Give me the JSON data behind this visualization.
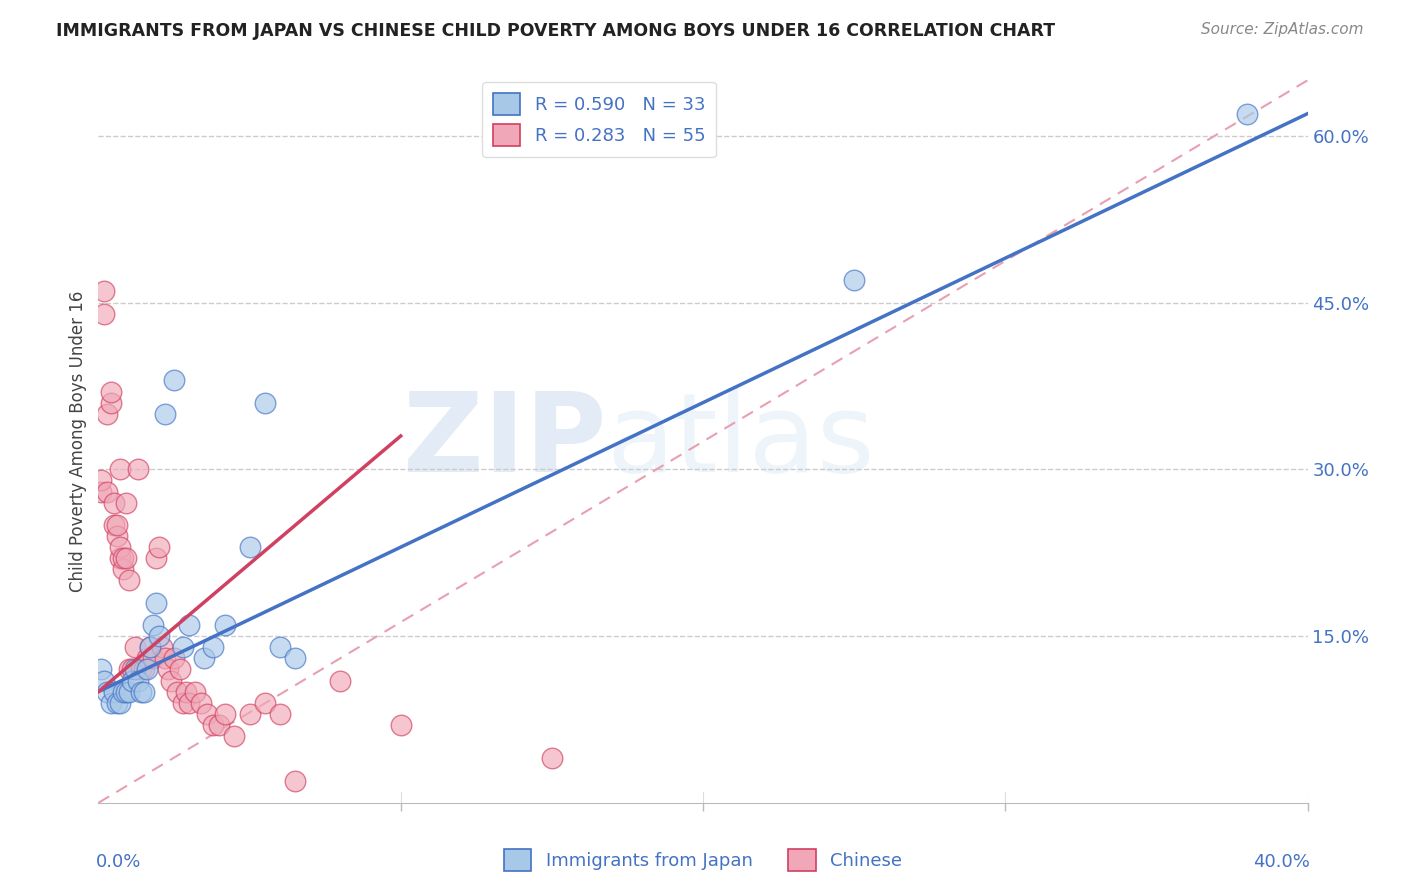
{
  "title": "IMMIGRANTS FROM JAPAN VS CHINESE CHILD POVERTY AMONG BOYS UNDER 16 CORRELATION CHART",
  "source": "Source: ZipAtlas.com",
  "ylabel": "Child Poverty Among Boys Under 16",
  "x_label_bottom_left": "0.0%",
  "x_label_bottom_right": "40.0%",
  "watermark_zip": "ZIP",
  "watermark_atlas": "atlas",
  "legend_label_japan": "Immigrants from Japan",
  "legend_label_chinese": "Chinese",
  "r_japan": 0.59,
  "n_japan": 33,
  "r_chinese": 0.283,
  "n_chinese": 55,
  "xlim": [
    0.0,
    0.4
  ],
  "ylim": [
    0.0,
    0.65
  ],
  "y_ticks": [
    0.15,
    0.3,
    0.45,
    0.6
  ],
  "y_tick_labels": [
    "15.0%",
    "30.0%",
    "45.0%",
    "60.0%"
  ],
  "x_ticks": [
    0.1,
    0.2,
    0.3,
    0.4
  ],
  "color_japan": "#a8c8e8",
  "color_chinese": "#f0a8b8",
  "line_color_japan": "#4472c4",
  "line_color_chinese": "#d04060",
  "title_color": "#222222",
  "japan_scatter_x": [
    0.001,
    0.002,
    0.003,
    0.004,
    0.005,
    0.006,
    0.007,
    0.008,
    0.009,
    0.01,
    0.011,
    0.012,
    0.013,
    0.014,
    0.015,
    0.016,
    0.017,
    0.018,
    0.019,
    0.02,
    0.022,
    0.025,
    0.028,
    0.03,
    0.035,
    0.038,
    0.042,
    0.05,
    0.055,
    0.06,
    0.065,
    0.25,
    0.38
  ],
  "japan_scatter_y": [
    0.12,
    0.11,
    0.1,
    0.09,
    0.1,
    0.09,
    0.09,
    0.1,
    0.1,
    0.1,
    0.11,
    0.12,
    0.11,
    0.1,
    0.1,
    0.12,
    0.14,
    0.16,
    0.18,
    0.15,
    0.35,
    0.38,
    0.14,
    0.16,
    0.13,
    0.14,
    0.16,
    0.23,
    0.36,
    0.14,
    0.13,
    0.47,
    0.62
  ],
  "chinese_scatter_x": [
    0.001,
    0.001,
    0.002,
    0.002,
    0.003,
    0.003,
    0.004,
    0.004,
    0.005,
    0.005,
    0.006,
    0.006,
    0.007,
    0.007,
    0.007,
    0.008,
    0.008,
    0.009,
    0.009,
    0.01,
    0.01,
    0.011,
    0.012,
    0.013,
    0.014,
    0.015,
    0.016,
    0.017,
    0.018,
    0.019,
    0.02,
    0.021,
    0.022,
    0.023,
    0.024,
    0.025,
    0.026,
    0.027,
    0.028,
    0.029,
    0.03,
    0.032,
    0.034,
    0.036,
    0.038,
    0.04,
    0.042,
    0.045,
    0.05,
    0.055,
    0.06,
    0.065,
    0.08,
    0.1,
    0.15
  ],
  "chinese_scatter_y": [
    0.28,
    0.29,
    0.44,
    0.46,
    0.35,
    0.28,
    0.36,
    0.37,
    0.25,
    0.27,
    0.24,
    0.25,
    0.22,
    0.23,
    0.3,
    0.21,
    0.22,
    0.22,
    0.27,
    0.12,
    0.2,
    0.12,
    0.14,
    0.3,
    0.12,
    0.12,
    0.13,
    0.14,
    0.13,
    0.22,
    0.23,
    0.14,
    0.13,
    0.12,
    0.11,
    0.13,
    0.1,
    0.12,
    0.09,
    0.1,
    0.09,
    0.1,
    0.09,
    0.08,
    0.07,
    0.07,
    0.08,
    0.06,
    0.08,
    0.09,
    0.08,
    0.02,
    0.11,
    0.07,
    0.04
  ],
  "japan_line_x0": 0.0,
  "japan_line_y0": 0.1,
  "japan_line_x1": 0.4,
  "japan_line_y1": 0.62,
  "chinese_line_x0": 0.0,
  "chinese_line_y0": 0.1,
  "chinese_line_x1": 0.1,
  "chinese_line_y1": 0.33,
  "refline_color": "#e8a0b0",
  "refline_dash": [
    6,
    4
  ]
}
